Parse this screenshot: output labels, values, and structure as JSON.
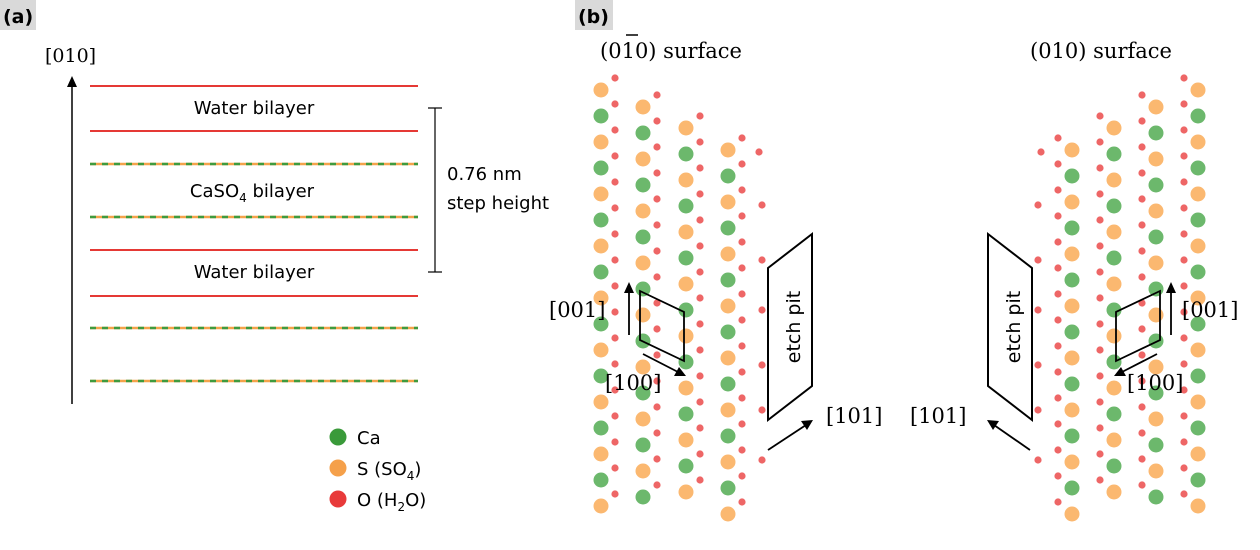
{
  "panel_a": {
    "label": "(a)",
    "axis_label": "[010]",
    "layer_labels": {
      "water_top": "Water bilayer",
      "caso4_prefix": "CaSO",
      "caso4_sub": "4",
      "caso4_suffix": " bilayer",
      "water_bottom": "Water bilayer"
    },
    "step_height": {
      "line1": "0.76 nm",
      "line2": "step height"
    },
    "legend": [
      {
        "id": "ca",
        "color": "#3a9a3a",
        "prefix": "Ca",
        "sub": "",
        "suffix": ""
      },
      {
        "id": "s",
        "color": "#f5a04a",
        "prefix": "S (SO",
        "sub": "4",
        "suffix": ")"
      },
      {
        "id": "o",
        "color": "#e83a3a",
        "prefix": "O (H",
        "sub": "2",
        "suffix": "O)"
      }
    ]
  },
  "panel_b": {
    "label": "(b)",
    "left_title": "(0̅0) surface",
    "left_title_pre": "(0",
    "left_title_bar": "1",
    "left_title_post": "0) surface",
    "right_title": "(010) surface",
    "etch_pit_label": "etch pit",
    "dir_001": "[001]",
    "dir_100": "[100]",
    "dir_101": "[101]"
  },
  "colors": {
    "ca": "#6cb86c",
    "s": "#fbb870",
    "o": "#ee6666",
    "water_line": "#e53935",
    "caso4_green": "#3e9a3e",
    "caso4_orange": "#f4a34b",
    "panel_label_bg": "#d9d9d9"
  }
}
